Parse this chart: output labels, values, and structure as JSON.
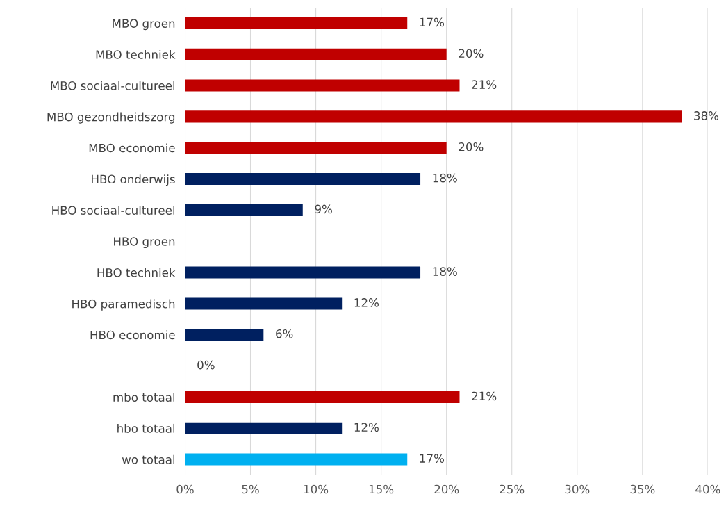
{
  "chart_data": {
    "type": "bar",
    "orientation": "horizontal",
    "categories": [
      "MBO groen",
      "MBO techniek",
      "MBO sociaal-cultureel",
      "MBO gezondheidszorg",
      "MBO economie",
      "HBO onderwijs",
      "HBO sociaal-cultureel",
      "HBO groen",
      "HBO techniek",
      "HBO paramedisch",
      "HBO economie",
      null,
      "mbo totaal",
      "hbo totaal",
      "wo totaal"
    ],
    "values": [
      17,
      20,
      21,
      38,
      20,
      18,
      9,
      null,
      18,
      12,
      6,
      0,
      21,
      12,
      17
    ],
    "colors": [
      "#c00000",
      "#c00000",
      "#c00000",
      "#c00000",
      "#c00000",
      "#002060",
      "#002060",
      "#002060",
      "#002060",
      "#002060",
      "#002060",
      "#002060",
      "#c00000",
      "#002060",
      "#00b0f0"
    ],
    "value_labels": [
      "17%",
      "20%",
      "21%",
      "38%",
      "20%",
      "18%",
      "9%",
      null,
      "18%",
      "12%",
      "6%",
      "0%",
      "21%",
      "12%",
      "17%"
    ],
    "xlim": [
      0,
      40
    ],
    "xticks": [
      {
        "value": 0,
        "label": "0%"
      },
      {
        "value": 5,
        "label": "5%"
      },
      {
        "value": 10,
        "label": "10%"
      },
      {
        "value": 15,
        "label": "15%"
      },
      {
        "value": 20,
        "label": "20%"
      },
      {
        "value": 25,
        "label": "25%"
      },
      {
        "value": 30,
        "label": "30%"
      },
      {
        "value": 35,
        "label": "35%"
      },
      {
        "value": 40,
        "label": "40%"
      }
    ],
    "grid": "x",
    "legend": false
  }
}
